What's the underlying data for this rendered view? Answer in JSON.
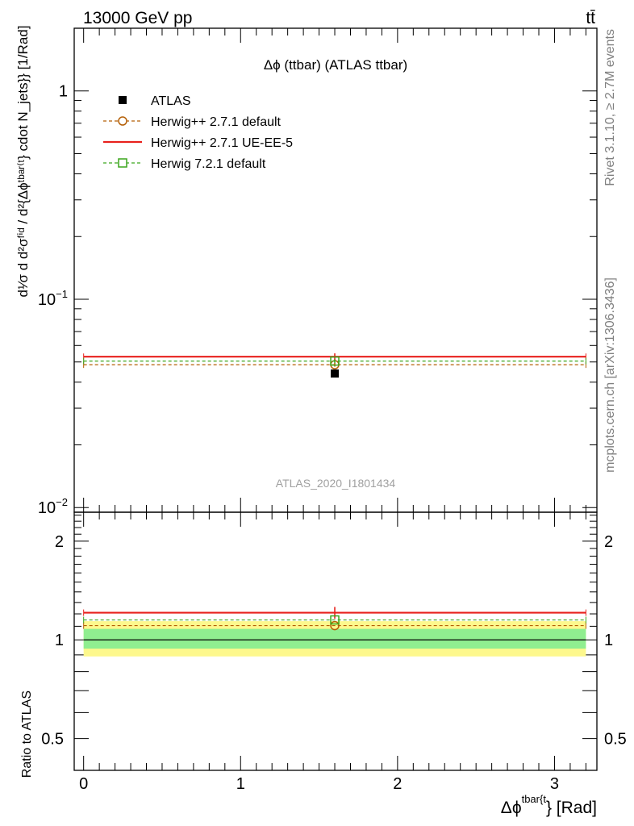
{
  "header": {
    "energy_label": "13000 GeV pp",
    "process_label": "tt̄",
    "plot_title": "Δϕ (ttbar) (ATLAS ttbar)",
    "analysis_id": "ATLAS_2020_I1801434",
    "rivet_label": "Rivet 3.1.10, ≥ 2.7M events",
    "site_label": "mcplots.cern.ch [arXiv:1306.3436]"
  },
  "axes": {
    "main_ylabel": "d¹⁄σ d d²σᶠⁱᵈ / d²{Δϕᵗᵇᵃʳ⁽ᵗ} cdot N_jets}} [1/Rad]",
    "ratio_ylabel": "Ratio to ATLAS",
    "xlabel_main": "Δϕ",
    "xlabel_sup": "tbar{t",
    "xlabel_tail": "} [Rad]",
    "main_yticks": [
      {
        "label": "1"
      },
      {
        "label": "10",
        "exp": "−1"
      },
      {
        "label": "10",
        "exp": "−2"
      }
    ],
    "ratio_yticks": [
      "2",
      "1",
      "0.5"
    ],
    "xticks": [
      "0",
      "1",
      "2",
      "3"
    ]
  },
  "chart_data": [
    {
      "type": "line",
      "panel": "main",
      "yscale": "log",
      "ylim": [
        0.0095,
        2.0
      ],
      "xlim": [
        -0.06,
        3.27
      ],
      "x_edges": [
        0.0,
        3.2
      ],
      "legend_position": "top-left",
      "series": [
        {
          "name": "ATLAS",
          "kind": "data-points",
          "x": [
            1.6
          ],
          "y": [
            0.044
          ],
          "color": "#000000"
        },
        {
          "name": "Herwig++ 2.7.1 default",
          "kind": "dashed-line-circle",
          "x": [
            1.6
          ],
          "y": [
            0.0485
          ],
          "yerr": [
            0.001
          ],
          "color": "#b45f06"
        },
        {
          "name": "Herwig++ 2.7.1 UE-EE-5",
          "kind": "solid-line",
          "x": [
            1.6
          ],
          "y": [
            0.053
          ],
          "yerr": [
            0.002
          ],
          "color": "#e8211d"
        },
        {
          "name": "Herwig 7.2.1 default",
          "kind": "dashed-line-square",
          "x": [
            1.6
          ],
          "y": [
            0.0505
          ],
          "yerr": [
            0.001
          ],
          "color": "#3aa61c"
        }
      ]
    },
    {
      "type": "line",
      "panel": "ratio",
      "yscale": "log",
      "ylim": [
        0.4,
        2.45
      ],
      "xlim": [
        -0.06,
        3.27
      ],
      "x_edges": [
        0.0,
        3.2
      ],
      "uncertainty_bands": [
        {
          "name": "stat",
          "color": "#90ee90",
          "low": 0.94,
          "high": 1.08
        },
        {
          "name": "total",
          "color": "#fdf88d",
          "low": 0.89,
          "high": 1.14
        }
      ],
      "series": [
        {
          "name": "ATLAS",
          "values": [
            1.0
          ],
          "color": "#000000"
        },
        {
          "name": "Herwig++ 2.7.1 default",
          "values": [
            1.105
          ],
          "color": "#b45f06"
        },
        {
          "name": "Herwig++ 2.7.1 UE-EE-5",
          "values": [
            1.21
          ],
          "yerr": [
            0.05
          ],
          "color": "#e8211d"
        },
        {
          "name": "Herwig 7.2.1 default",
          "values": [
            1.15
          ],
          "color": "#3aa61c"
        }
      ]
    }
  ]
}
